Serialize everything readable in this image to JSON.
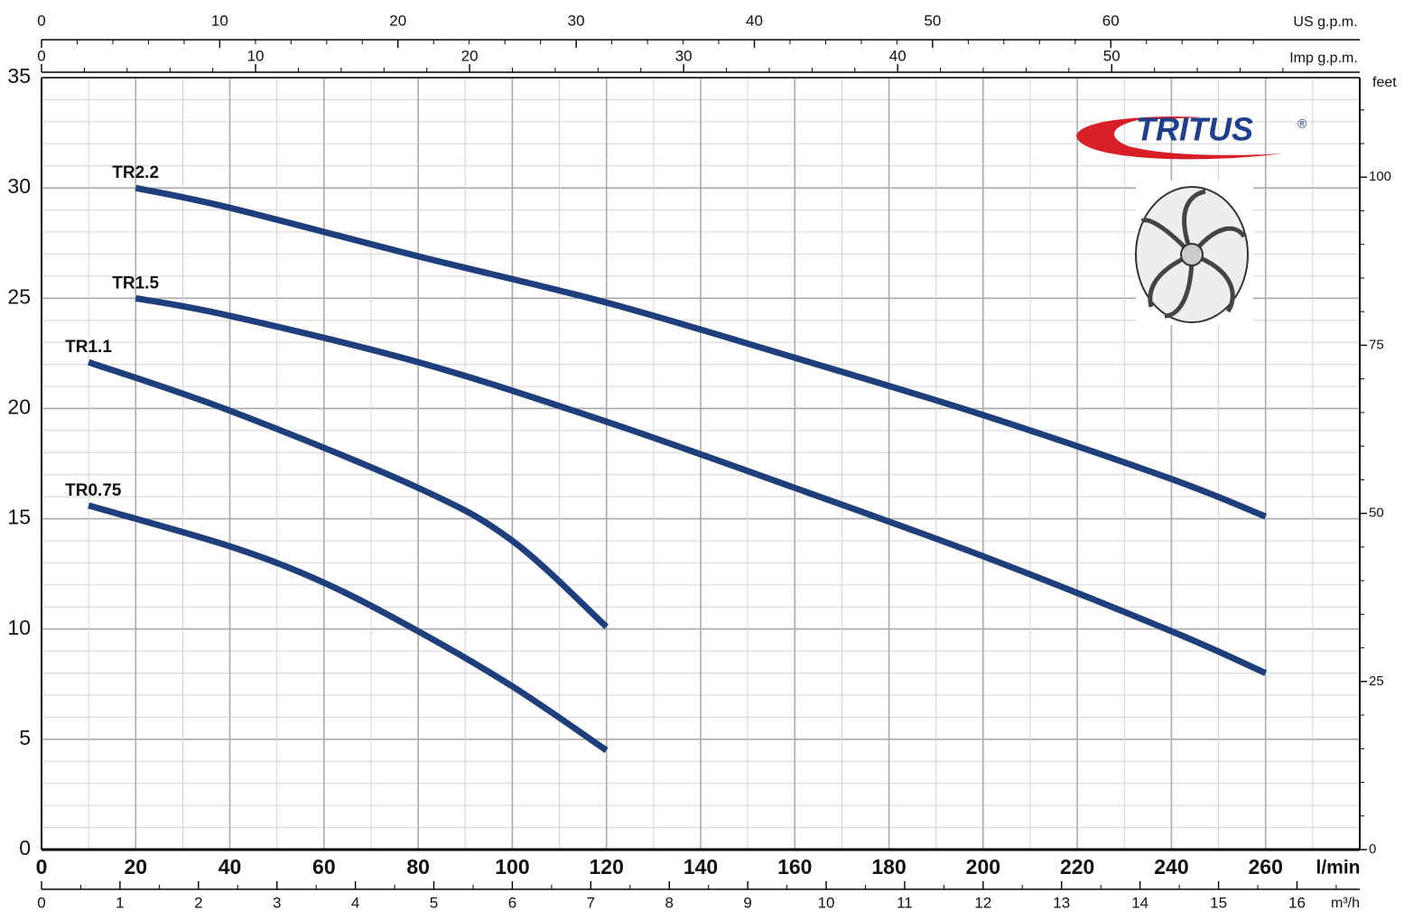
{
  "chart_data": {
    "type": "line",
    "x_label": "l/min",
    "xlim": [
      0,
      280
    ],
    "xticks": [
      0,
      20,
      40,
      60,
      80,
      100,
      120,
      140,
      160,
      180,
      200,
      220,
      240,
      260
    ],
    "ylim": [
      0,
      35
    ],
    "yticks": [
      0,
      5,
      10,
      15,
      20,
      25,
      30,
      35
    ],
    "y2_label": "feet",
    "y2lim": [
      0,
      114.8
    ],
    "y2ticks": [
      0,
      25,
      50,
      75,
      100
    ],
    "grid": true,
    "top_axes": [
      {
        "label": "US g.p.m.",
        "lim": [
          0,
          73.97
        ],
        "ticks": [
          0,
          10,
          20,
          30,
          40,
          50,
          60
        ]
      },
      {
        "label": "Imp g.p.m.",
        "lim": [
          0,
          61.59
        ],
        "ticks": [
          0,
          10,
          20,
          30,
          40,
          50
        ]
      }
    ],
    "bottom_axis2": {
      "label": "m³/h",
      "lim": [
        0,
        16.8
      ],
      "ticks": [
        0,
        1,
        2,
        3,
        4,
        5,
        6,
        7,
        8,
        9,
        10,
        11,
        12,
        13,
        14,
        15,
        16
      ]
    },
    "logo": "TRITUS",
    "logo_mark": "®",
    "series": [
      {
        "name": "TR2.2",
        "color": "#1f3e7c",
        "x": [
          20,
          40,
          80,
          120,
          160,
          200,
          240,
          260
        ],
        "values": [
          30,
          29.1,
          26.9,
          24.8,
          22.3,
          19.7,
          16.8,
          15.1
        ]
      },
      {
        "name": "TR1.5",
        "color": "#1f3e7c",
        "x": [
          20,
          40,
          80,
          120,
          160,
          200,
          240,
          260
        ],
        "values": [
          25,
          24.2,
          22.1,
          19.4,
          16.4,
          13.3,
          9.9,
          8
        ]
      },
      {
        "name": "TR1.1",
        "color": "#1f3e7c",
        "x": [
          10,
          40,
          80,
          100,
          120
        ],
        "values": [
          22.1,
          19.9,
          16.4,
          14,
          10.1
        ]
      },
      {
        "name": "TR0.75",
        "color": "#1f3e7c",
        "x": [
          10,
          40,
          60,
          80,
          100,
          120
        ],
        "values": [
          15.6,
          13.75,
          12.1,
          9.9,
          7.4,
          4.5
        ]
      }
    ]
  }
}
